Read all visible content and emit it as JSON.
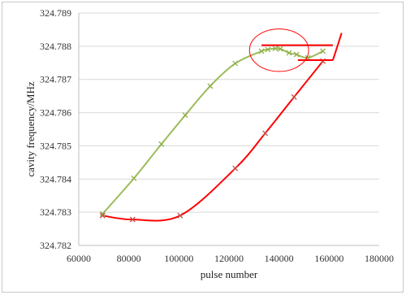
{
  "chart_data": {
    "type": "line",
    "title": "",
    "xlabel": "pulse number",
    "ylabel": "cavity frequency/MHz",
    "xlim": [
      60000,
      180000
    ],
    "ylim": [
      324.782,
      324.789
    ],
    "x_ticks": [
      "60000",
      "80000",
      "100000",
      "120000",
      "140000",
      "160000",
      "180000"
    ],
    "y_ticks": [
      "324.782",
      "324.783",
      "324.784",
      "324.785",
      "324.786",
      "324.787",
      "324.788",
      "324.789"
    ],
    "grid": "horizontal",
    "legend": "none",
    "series": [
      {
        "color": "#9bbb59",
        "marker": "x",
        "points": [
          [
            69500,
            324.78295
          ],
          [
            82000,
            324.78402
          ],
          [
            93000,
            324.78505
          ],
          [
            102500,
            324.78592
          ],
          [
            112500,
            324.7868
          ],
          [
            122500,
            324.78748
          ],
          [
            133000,
            324.78785
          ],
          [
            135500,
            324.7879
          ],
          [
            138500,
            324.78793
          ],
          [
            140500,
            324.78792
          ],
          [
            144000,
            324.7878
          ],
          [
            147000,
            324.78775
          ],
          [
            151500,
            324.78765
          ],
          [
            157500,
            324.78785
          ]
        ]
      },
      {
        "color": "#ff0000",
        "marker": "x",
        "points": [
          [
            69500,
            324.7829
          ],
          [
            81500,
            324.78278
          ],
          [
            100500,
            324.7829
          ],
          [
            122500,
            324.78432
          ],
          [
            134500,
            324.78538
          ],
          [
            146000,
            324.78647
          ],
          [
            157500,
            324.78755
          ]
        ]
      }
    ],
    "annotations": [
      {
        "shape": "ellipse",
        "color": "#ff0000",
        "cx": 140000,
        "cy": 324.78788,
        "rx": 11800,
        "ry": 0.00064
      },
      {
        "shape": "line",
        "color": "#ff0000",
        "x1": 133000,
        "y1": 324.78803,
        "x2": 161500,
        "y2": 324.78803
      },
      {
        "shape": "line",
        "color": "#ff0000",
        "x1": 147500,
        "y1": 324.78758,
        "x2": 161500,
        "y2": 324.78758
      },
      {
        "shape": "line",
        "color": "#ff0000",
        "x1": 161500,
        "y1": 324.78758,
        "x2": 165000,
        "y2": 324.7884
      }
    ]
  }
}
